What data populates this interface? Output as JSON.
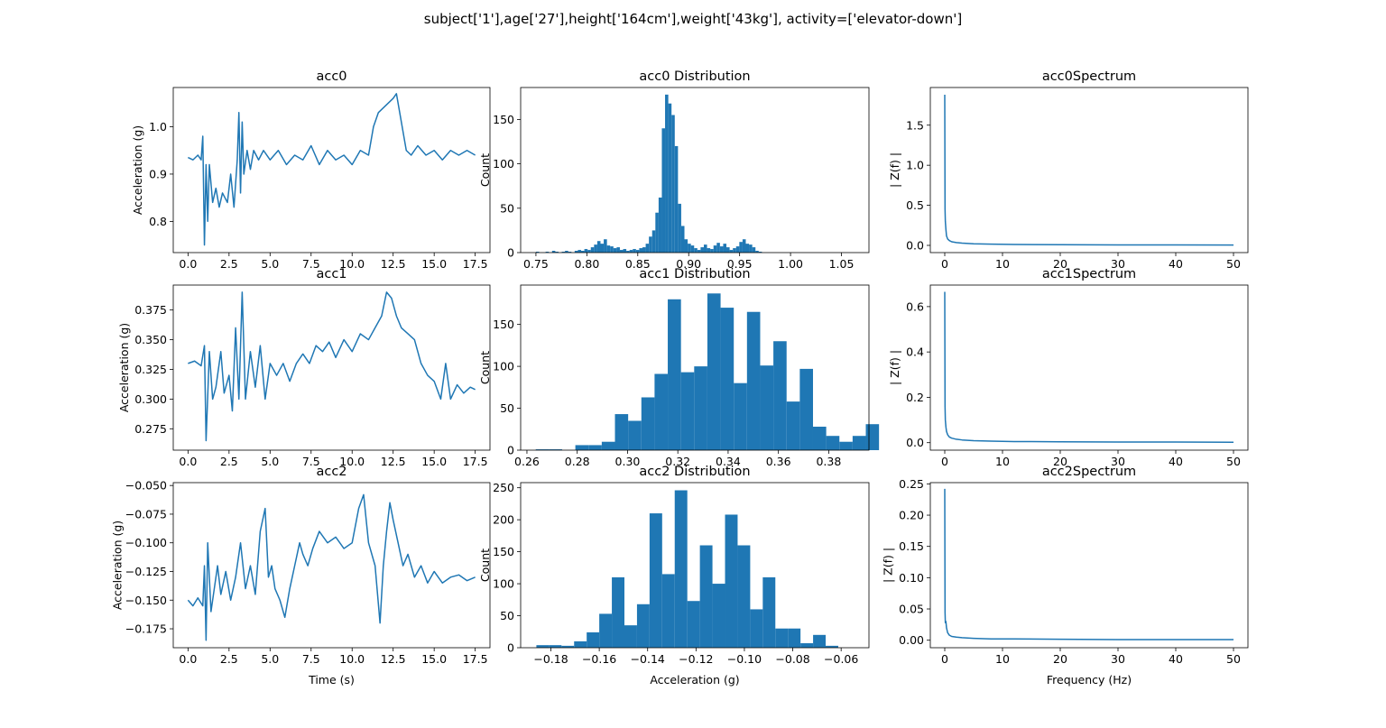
{
  "figure": {
    "suptitle": "subject['1'],age['27'],height['164cm'],weight['43kg'], activity=['elevator-down']"
  },
  "chart_data": [
    {
      "type": "line",
      "title": "acc0",
      "xlabel": "",
      "ylabel": "Acceleration (g)",
      "xlim": [
        -0.9,
        18.4
      ],
      "ylim": [
        0.734,
        1.083
      ],
      "xticks": [
        0.0,
        2.5,
        5.0,
        7.5,
        10.0,
        12.5,
        15.0,
        17.5
      ],
      "xtick_labels": [
        "0.0",
        "2.5",
        "5.0",
        "7.5",
        "10.0",
        "12.5",
        "15.0",
        "17.5"
      ],
      "yticks": [
        0.8,
        0.9,
        1.0
      ],
      "ytick_labels": [
        "0.8",
        "0.9",
        "1.0"
      ],
      "color": "#1f77b4",
      "series": [
        {
          "x": [
            0.0,
            0.3,
            0.6,
            0.8,
            0.9,
            1.0,
            1.1,
            1.2,
            1.3,
            1.5,
            1.7,
            1.9,
            2.1,
            2.4,
            2.6,
            2.8,
            3.0,
            3.1,
            3.2,
            3.3,
            3.4,
            3.6,
            3.8,
            4.0,
            4.3,
            4.6,
            5.0,
            5.5,
            6.0,
            6.5,
            7.0,
            7.5,
            8.0,
            8.5,
            9.0,
            9.5,
            10.0,
            10.5,
            11.0,
            11.3,
            11.6,
            11.9,
            12.2,
            12.5,
            12.7,
            12.9,
            13.1,
            13.3,
            13.6,
            14.0,
            14.5,
            15.0,
            15.5,
            16.0,
            16.5,
            17.0,
            17.5
          ],
          "y": [
            0.935,
            0.93,
            0.94,
            0.93,
            0.98,
            0.75,
            0.92,
            0.8,
            0.92,
            0.84,
            0.87,
            0.83,
            0.86,
            0.84,
            0.9,
            0.83,
            0.93,
            1.03,
            0.86,
            1.01,
            0.9,
            0.95,
            0.91,
            0.95,
            0.93,
            0.95,
            0.93,
            0.95,
            0.92,
            0.94,
            0.93,
            0.96,
            0.92,
            0.95,
            0.93,
            0.94,
            0.92,
            0.95,
            0.94,
            1.0,
            1.03,
            1.04,
            1.05,
            1.06,
            1.07,
            1.03,
            0.99,
            0.95,
            0.94,
            0.96,
            0.94,
            0.95,
            0.93,
            0.95,
            0.94,
            0.95,
            0.94
          ]
        }
      ]
    },
    {
      "type": "bar",
      "title": "acc0 Distribution",
      "xlabel": "",
      "ylabel": "Count",
      "xlim": [
        0.735,
        1.077
      ],
      "ylim": [
        0,
        186
      ],
      "xticks": [
        0.75,
        0.8,
        0.85,
        0.9,
        0.95,
        1.0,
        1.05
      ],
      "xtick_labels": [
        "0.75",
        "0.80",
        "0.85",
        "0.90",
        "0.95",
        "1.00",
        "1.05"
      ],
      "yticks": [
        0,
        50,
        100,
        150
      ],
      "ytick_labels": [
        "0",
        "50",
        "100",
        "150"
      ],
      "color": "#1f77b4",
      "bin_start": 0.75,
      "bin_width": 0.00317,
      "values": [
        1,
        0,
        0,
        1,
        0,
        2,
        1,
        0,
        1,
        2,
        1,
        0,
        2,
        3,
        2,
        4,
        3,
        6,
        9,
        13,
        10,
        15,
        8,
        7,
        5,
        6,
        3,
        4,
        2,
        3,
        4,
        3,
        5,
        6,
        10,
        18,
        25,
        45,
        62,
        140,
        178,
        168,
        155,
        120,
        55,
        30,
        15,
        10,
        8,
        5,
        3,
        6,
        9,
        5,
        4,
        8,
        11,
        7,
        10,
        6,
        3,
        5,
        7,
        12,
        15,
        10,
        9,
        6,
        2,
        1
      ]
    },
    {
      "type": "line",
      "title": "acc0Spectrum",
      "xlabel": "",
      "ylabel": "| Z(f) |",
      "xlim": [
        -2.5,
        52.5
      ],
      "ylim": [
        -0.09,
        1.97
      ],
      "xticks": [
        0,
        10,
        20,
        30,
        40,
        50
      ],
      "xtick_labels": [
        "0",
        "10",
        "20",
        "30",
        "40",
        "50"
      ],
      "yticks": [
        0.0,
        0.5,
        1.0,
        1.5
      ],
      "ytick_labels": [
        "0.0",
        "0.5",
        "1.0",
        "1.5"
      ],
      "color": "#1f77b4",
      "series": [
        {
          "x": [
            0.0,
            0.05,
            0.1,
            0.2,
            0.3,
            0.5,
            0.8,
            1.2,
            2.0,
            3.0,
            5.0,
            8.0,
            12.0,
            20.0,
            30.0,
            40.0,
            50.0
          ],
          "y": [
            1.88,
            0.45,
            0.3,
            0.2,
            0.12,
            0.08,
            0.06,
            0.045,
            0.035,
            0.028,
            0.02,
            0.015,
            0.012,
            0.008,
            0.006,
            0.005,
            0.004
          ]
        }
      ]
    },
    {
      "type": "line",
      "title": "acc1",
      "xlabel": "",
      "ylabel": "Acceleration (g)",
      "xlim": [
        -0.9,
        18.4
      ],
      "ylim": [
        0.257,
        0.396
      ],
      "xticks": [
        0.0,
        2.5,
        5.0,
        7.5,
        10.0,
        12.5,
        15.0,
        17.5
      ],
      "xtick_labels": [
        "0.0",
        "2.5",
        "5.0",
        "7.5",
        "10.0",
        "12.5",
        "15.0",
        "17.5"
      ],
      "yticks": [
        0.275,
        0.3,
        0.325,
        0.35,
        0.375
      ],
      "ytick_labels": [
        "0.275",
        "0.300",
        "0.325",
        "0.350",
        "0.375"
      ],
      "color": "#1f77b4",
      "series": [
        {
          "x": [
            0.0,
            0.4,
            0.8,
            1.0,
            1.1,
            1.3,
            1.5,
            1.7,
            2.0,
            2.2,
            2.5,
            2.7,
            2.9,
            3.1,
            3.3,
            3.5,
            3.8,
            4.1,
            4.4,
            4.7,
            5.0,
            5.4,
            5.8,
            6.2,
            6.6,
            7.0,
            7.4,
            7.8,
            8.2,
            8.6,
            9.0,
            9.5,
            10.0,
            10.5,
            11.0,
            11.4,
            11.8,
            12.1,
            12.4,
            12.7,
            13.0,
            13.4,
            13.8,
            14.2,
            14.6,
            15.0,
            15.4,
            15.7,
            16.0,
            16.4,
            16.8,
            17.2,
            17.5
          ],
          "y": [
            0.33,
            0.332,
            0.328,
            0.345,
            0.265,
            0.34,
            0.3,
            0.31,
            0.34,
            0.305,
            0.32,
            0.29,
            0.36,
            0.3,
            0.39,
            0.3,
            0.34,
            0.31,
            0.345,
            0.3,
            0.33,
            0.32,
            0.33,
            0.315,
            0.33,
            0.338,
            0.33,
            0.345,
            0.34,
            0.348,
            0.335,
            0.35,
            0.34,
            0.355,
            0.35,
            0.36,
            0.37,
            0.39,
            0.385,
            0.37,
            0.36,
            0.355,
            0.35,
            0.33,
            0.32,
            0.315,
            0.3,
            0.33,
            0.3,
            0.312,
            0.305,
            0.31,
            0.308
          ]
        }
      ]
    },
    {
      "type": "bar",
      "title": "acc1 Distribution",
      "xlabel": "",
      "ylabel": "Count",
      "xlim": [
        0.2575,
        0.396
      ],
      "ylim": [
        0,
        197
      ],
      "xticks": [
        0.26,
        0.28,
        0.3,
        0.32,
        0.34,
        0.36,
        0.38
      ],
      "xtick_labels": [
        "0.26",
        "0.28",
        "0.30",
        "0.32",
        "0.34",
        "0.36",
        "0.38"
      ],
      "yticks": [
        0,
        50,
        100,
        150
      ],
      "ytick_labels": [
        "0",
        "50",
        "100",
        "150"
      ],
      "color": "#1f77b4",
      "bin_start": 0.2635,
      "bin_width": 0.00525,
      "values": [
        1,
        1,
        0,
        6,
        6,
        10,
        43,
        35,
        63,
        91,
        180,
        93,
        100,
        187,
        170,
        80,
        165,
        101,
        130,
        58,
        97,
        28,
        17,
        10,
        17,
        31
      ]
    },
    {
      "type": "line",
      "title": "acc1Spectrum",
      "xlabel": "",
      "ylabel": "| Z(f) |",
      "xlim": [
        -2.5,
        52.5
      ],
      "ylim": [
        -0.033,
        0.695
      ],
      "xticks": [
        0,
        10,
        20,
        30,
        40,
        50
      ],
      "xtick_labels": [
        "0",
        "10",
        "20",
        "30",
        "40",
        "50"
      ],
      "yticks": [
        0.0,
        0.2,
        0.4,
        0.6
      ],
      "ytick_labels": [
        "0.0",
        "0.2",
        "0.4",
        "0.6"
      ],
      "color": "#1f77b4",
      "series": [
        {
          "x": [
            0.0,
            0.05,
            0.1,
            0.2,
            0.3,
            0.5,
            0.8,
            1.2,
            2.0,
            3.0,
            5.0,
            8.0,
            12.0,
            20.0,
            30.0,
            40.0,
            50.0
          ],
          "y": [
            0.665,
            0.16,
            0.1,
            0.07,
            0.05,
            0.035,
            0.025,
            0.02,
            0.015,
            0.012,
            0.009,
            0.007,
            0.005,
            0.004,
            0.003,
            0.003,
            0.002
          ]
        }
      ]
    },
    {
      "type": "line",
      "title": "acc2",
      "xlabel": "Time (s)",
      "ylabel": "Acceleration (g)",
      "xlim": [
        -0.9,
        18.4
      ],
      "ylim": [
        -0.1915,
        -0.0475
      ],
      "xticks": [
        0.0,
        2.5,
        5.0,
        7.5,
        10.0,
        12.5,
        15.0,
        17.5
      ],
      "xtick_labels": [
        "0.0",
        "2.5",
        "5.0",
        "7.5",
        "10.0",
        "12.5",
        "15.0",
        "17.5"
      ],
      "yticks": [
        -0.175,
        -0.15,
        -0.125,
        -0.1,
        -0.075,
        -0.05
      ],
      "ytick_labels": [
        "−0.175",
        "−0.150",
        "−0.125",
        "−0.100",
        "−0.075",
        "−0.050"
      ],
      "color": "#1f77b4",
      "series": [
        {
          "x": [
            0.0,
            0.3,
            0.6,
            0.9,
            1.0,
            1.1,
            1.2,
            1.4,
            1.6,
            1.8,
            2.0,
            2.3,
            2.6,
            2.9,
            3.2,
            3.5,
            3.8,
            4.1,
            4.4,
            4.7,
            4.9,
            5.1,
            5.3,
            5.6,
            5.9,
            6.2,
            6.5,
            6.8,
            7.0,
            7.3,
            7.6,
            8.0,
            8.5,
            9.0,
            9.5,
            10.0,
            10.4,
            10.7,
            11.0,
            11.4,
            11.7,
            11.9,
            12.1,
            12.3,
            12.5,
            12.8,
            13.1,
            13.4,
            13.8,
            14.2,
            14.6,
            15.0,
            15.5,
            16.0,
            16.5,
            17.0,
            17.5
          ],
          "y": [
            -0.15,
            -0.155,
            -0.148,
            -0.155,
            -0.12,
            -0.185,
            -0.1,
            -0.16,
            -0.14,
            -0.12,
            -0.145,
            -0.125,
            -0.15,
            -0.13,
            -0.1,
            -0.14,
            -0.12,
            -0.145,
            -0.09,
            -0.07,
            -0.13,
            -0.12,
            -0.14,
            -0.15,
            -0.165,
            -0.14,
            -0.12,
            -0.1,
            -0.11,
            -0.12,
            -0.105,
            -0.09,
            -0.1,
            -0.095,
            -0.105,
            -0.1,
            -0.07,
            -0.058,
            -0.1,
            -0.12,
            -0.17,
            -0.12,
            -0.09,
            -0.065,
            -0.08,
            -0.1,
            -0.12,
            -0.11,
            -0.13,
            -0.12,
            -0.135,
            -0.125,
            -0.135,
            -0.13,
            -0.128,
            -0.133,
            -0.13
          ]
        }
      ]
    },
    {
      "type": "bar",
      "title": "acc2 Distribution",
      "xlabel": "Acceleration (g)",
      "ylabel": "Count",
      "xlim": [
        -0.1925,
        -0.0485
      ],
      "ylim": [
        0,
        258
      ],
      "xticks": [
        -0.18,
        -0.16,
        -0.14,
        -0.12,
        -0.1,
        -0.08,
        -0.06
      ],
      "xtick_labels": [
        "−0.18",
        "−0.16",
        "−0.14",
        "−0.12",
        "−0.10",
        "−0.08",
        "−0.06"
      ],
      "yticks": [
        0,
        50,
        100,
        150,
        200,
        250
      ],
      "ytick_labels": [
        "0",
        "50",
        "100",
        "150",
        "200",
        "250"
      ],
      "color": "#1f77b4",
      "bin_start": -0.186,
      "bin_width": 0.0052,
      "values": [
        4,
        4,
        3,
        10,
        24,
        53,
        110,
        35,
        68,
        210,
        115,
        246,
        73,
        160,
        100,
        208,
        160,
        60,
        110,
        30,
        30,
        7,
        20,
        3
      ]
    },
    {
      "type": "line",
      "title": "acc2Spectrum",
      "xlabel": "Frequency (Hz)",
      "ylabel": "| Z(f) |",
      "xlim": [
        -2.5,
        52.5
      ],
      "ylim": [
        -0.012,
        0.252
      ],
      "xticks": [
        0,
        10,
        20,
        30,
        40,
        50
      ],
      "xtick_labels": [
        "0",
        "10",
        "20",
        "30",
        "40",
        "50"
      ],
      "yticks": [
        0.0,
        0.05,
        0.1,
        0.15,
        0.2,
        0.25
      ],
      "ytick_labels": [
        "0.00",
        "0.05",
        "0.10",
        "0.15",
        "0.20",
        "0.25"
      ],
      "color": "#1f77b4",
      "series": [
        {
          "x": [
            0.0,
            0.05,
            0.1,
            0.2,
            0.3,
            0.5,
            0.8,
            1.2,
            2.0,
            3.0,
            5.0,
            8.0,
            12.0,
            20.0,
            30.0,
            40.0,
            50.0
          ],
          "y": [
            0.242,
            0.045,
            0.028,
            0.03,
            0.02,
            0.012,
            0.008,
            0.006,
            0.005,
            0.004,
            0.003,
            0.002,
            0.002,
            0.0015,
            0.001,
            0.001,
            0.001
          ]
        }
      ]
    }
  ]
}
